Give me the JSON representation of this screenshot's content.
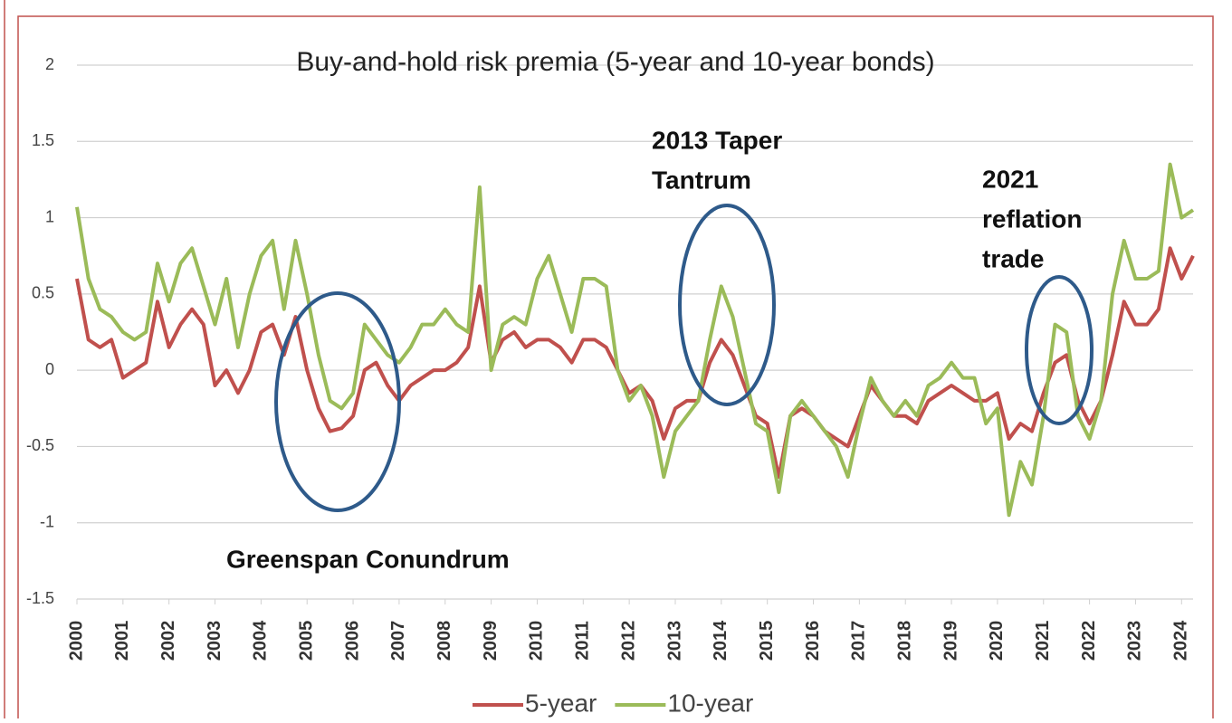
{
  "chart_data": {
    "type": "line",
    "title": "Buy-and-hold  risk premia (5-year and 10-year bonds)",
    "x": [
      2000,
      2000.25,
      2000.5,
      2000.75,
      2001,
      2001.25,
      2001.5,
      2001.75,
      2002,
      2002.25,
      2002.5,
      2002.75,
      2003,
      2003.25,
      2003.5,
      2003.75,
      2004,
      2004.25,
      2004.5,
      2004.75,
      2005,
      2005.25,
      2005.5,
      2005.75,
      2006,
      2006.25,
      2006.5,
      2006.75,
      2007,
      2007.25,
      2007.5,
      2007.75,
      2008,
      2008.25,
      2008.5,
      2008.75,
      2009,
      2009.25,
      2009.5,
      2009.75,
      2010,
      2010.25,
      2010.5,
      2010.75,
      2011,
      2011.25,
      2011.5,
      2011.75,
      2012,
      2012.25,
      2012.5,
      2012.75,
      2013,
      2013.25,
      2013.5,
      2013.75,
      2014,
      2014.25,
      2014.5,
      2014.75,
      2015,
      2015.25,
      2015.5,
      2015.75,
      2016,
      2016.25,
      2016.5,
      2016.75,
      2017,
      2017.25,
      2017.5,
      2017.75,
      2018,
      2018.25,
      2018.5,
      2018.75,
      2019,
      2019.25,
      2019.5,
      2019.75,
      2020,
      2020.25,
      2020.5,
      2020.75,
      2021,
      2021.25,
      2021.5,
      2021.75,
      2022,
      2022.25,
      2022.5,
      2022.75,
      2023,
      2023.25,
      2023.5,
      2023.75,
      2024,
      2024.25
    ],
    "series": [
      {
        "name": "5-year",
        "color": "#c0504d",
        "values": [
          0.6,
          0.2,
          0.15,
          0.2,
          -0.05,
          0.0,
          0.05,
          0.45,
          0.15,
          0.3,
          0.4,
          0.3,
          -0.1,
          0.0,
          -0.15,
          0.0,
          0.25,
          0.3,
          0.1,
          0.35,
          0.0,
          -0.25,
          -0.4,
          -0.38,
          -0.3,
          0.0,
          0.05,
          -0.1,
          -0.2,
          -0.1,
          -0.05,
          0.0,
          0.0,
          0.05,
          0.15,
          0.55,
          0.05,
          0.2,
          0.25,
          0.15,
          0.2,
          0.2,
          0.15,
          0.05,
          0.2,
          0.2,
          0.15,
          0.0,
          -0.15,
          -0.1,
          -0.2,
          -0.45,
          -0.25,
          -0.2,
          -0.2,
          0.05,
          0.2,
          0.1,
          -0.1,
          -0.3,
          -0.35,
          -0.7,
          -0.3,
          -0.25,
          -0.3,
          -0.4,
          -0.45,
          -0.5,
          -0.3,
          -0.1,
          -0.2,
          -0.3,
          -0.3,
          -0.35,
          -0.2,
          -0.15,
          -0.1,
          -0.15,
          -0.2,
          -0.2,
          -0.15,
          -0.45,
          -0.35,
          -0.4,
          -0.15,
          0.05,
          0.1,
          -0.2,
          -0.35,
          -0.2,
          0.1,
          0.45,
          0.3,
          0.3,
          0.4,
          0.8,
          0.6,
          0.75
        ]
      },
      {
        "name": "10-year",
        "color": "#9bbb59",
        "values": [
          1.07,
          0.6,
          0.4,
          0.35,
          0.25,
          0.2,
          0.25,
          0.7,
          0.45,
          0.7,
          0.8,
          0.55,
          0.3,
          0.6,
          0.15,
          0.5,
          0.75,
          0.85,
          0.4,
          0.85,
          0.5,
          0.1,
          -0.2,
          -0.25,
          -0.15,
          0.3,
          0.2,
          0.1,
          0.05,
          0.15,
          0.3,
          0.3,
          0.4,
          0.3,
          0.25,
          1.2,
          0.0,
          0.3,
          0.35,
          0.3,
          0.6,
          0.75,
          0.5,
          0.25,
          0.6,
          0.6,
          0.55,
          0.0,
          -0.2,
          -0.1,
          -0.3,
          -0.7,
          -0.4,
          -0.3,
          -0.2,
          0.2,
          0.55,
          0.35,
          0.0,
          -0.35,
          -0.4,
          -0.8,
          -0.3,
          -0.2,
          -0.3,
          -0.4,
          -0.5,
          -0.7,
          -0.35,
          -0.05,
          -0.2,
          -0.3,
          -0.2,
          -0.3,
          -0.1,
          -0.05,
          0.05,
          -0.05,
          -0.05,
          -0.35,
          -0.25,
          -0.95,
          -0.6,
          -0.75,
          -0.3,
          0.3,
          0.25,
          -0.3,
          -0.45,
          -0.2,
          0.5,
          0.85,
          0.6,
          0.6,
          0.65,
          1.35,
          1.0,
          1.05
        ]
      }
    ],
    "xlim": [
      2000,
      2024.25
    ],
    "xticks": [
      2000,
      2001,
      2002,
      2003,
      2004,
      2005,
      2006,
      2007,
      2008,
      2009,
      2010,
      2011,
      2012,
      2013,
      2014,
      2015,
      2016,
      2017,
      2018,
      2019,
      2020,
      2021,
      2022,
      2023,
      2024
    ],
    "ylim": [
      -1.5,
      2
    ],
    "yticks": [
      -1.5,
      -1,
      -0.5,
      0,
      0.5,
      1,
      1.5,
      2
    ],
    "grid": true,
    "legend": "bottom",
    "annotations": [
      {
        "lines": [
          "Greenspan Conundrum"
        ]
      },
      {
        "lines": [
          "2013 Taper",
          "Tantrum"
        ]
      },
      {
        "lines": [
          "2021",
          "reflation",
          "trade"
        ]
      }
    ]
  }
}
